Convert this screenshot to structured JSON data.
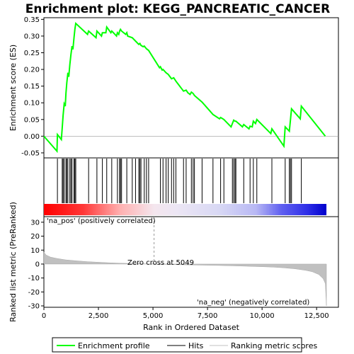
{
  "chart_data": [
    {
      "type": "line",
      "panel": "enrichment-profile",
      "title": "Enrichment plot: KEGG_PANCREATIC_CANCER",
      "ylabel": "Enrichment score (ES)",
      "ylim": [
        -0.065,
        0.355
      ],
      "xlim": [
        0,
        13500
      ],
      "yticks": [
        -0.05,
        0.0,
        0.05,
        0.1,
        0.15,
        0.2,
        0.25,
        0.3,
        0.35
      ],
      "ytick_labels": [
        "-0.05",
        "0.00",
        "0.05",
        "0.10",
        "0.15",
        "0.20",
        "0.25",
        "0.30",
        "0.35"
      ],
      "series": [
        {
          "name": "Enrichment profile",
          "color": "#00ff00",
          "x": [
            0,
            600,
            620,
            800,
            840,
            880,
            930,
            980,
            1010,
            1050,
            1100,
            1140,
            1190,
            1240,
            1290,
            1330,
            1380,
            1420,
            1460,
            2000,
            2050,
            2390,
            2430,
            2640,
            2680,
            2840,
            2880,
            3070,
            3110,
            3330,
            3370,
            3430,
            3470,
            3510,
            3560,
            3750,
            3800,
            3840,
            4050,
            4200,
            4350,
            4400,
            4450,
            4550,
            4600,
            4700,
            4800,
            5300,
            5340,
            5420,
            5460,
            5600,
            5700,
            5850,
            5950,
            6050,
            6400,
            6520,
            6600,
            6700,
            6760,
            6840,
            6900,
            7250,
            7750,
            8050,
            8100,
            8250,
            8580,
            8640,
            8700,
            8760,
            8800,
            9100,
            9160,
            9400,
            9450,
            9550,
            9600,
            9700,
            9760,
            10400,
            10450,
            11000,
            11060,
            11250,
            11300,
            11350,
            11750,
            11800,
            12900
          ],
          "y": [
            0.0,
            -0.045,
            0.005,
            -0.01,
            0.025,
            0.062,
            0.097,
            0.09,
            0.128,
            0.16,
            0.19,
            0.178,
            0.215,
            0.245,
            0.27,
            0.26,
            0.295,
            0.32,
            0.338,
            0.305,
            0.315,
            0.295,
            0.315,
            0.3,
            0.31,
            0.31,
            0.327,
            0.31,
            0.315,
            0.3,
            0.31,
            0.305,
            0.315,
            0.32,
            0.315,
            0.305,
            0.31,
            0.3,
            0.295,
            0.285,
            0.275,
            0.278,
            0.272,
            0.268,
            0.27,
            0.262,
            0.257,
            0.205,
            0.208,
            0.198,
            0.2,
            0.19,
            0.185,
            0.172,
            0.175,
            0.165,
            0.135,
            0.138,
            0.13,
            0.125,
            0.132,
            0.128,
            0.122,
            0.102,
            0.065,
            0.052,
            0.056,
            0.05,
            0.028,
            0.038,
            0.048,
            0.045,
            0.045,
            0.028,
            0.035,
            0.022,
            0.03,
            0.028,
            0.045,
            0.038,
            0.05,
            0.008,
            0.022,
            -0.03,
            0.028,
            0.015,
            0.048,
            0.082,
            0.052,
            0.09,
            0.0
          ]
        }
      ]
    },
    {
      "type": "scatter",
      "panel": "hits",
      "series": [
        {
          "name": "Hits",
          "color": "#000000",
          "x": [
            620,
            840,
            880,
            930,
            1010,
            1050,
            1100,
            1190,
            1240,
            1290,
            1380,
            1420,
            1460,
            2050,
            2430,
            2680,
            2880,
            3110,
            3370,
            3470,
            3510,
            3560,
            3800,
            4050,
            4200,
            4350,
            4400,
            4450,
            4600,
            4700,
            4800,
            5340,
            5460,
            5600,
            5700,
            5850,
            5950,
            6050,
            6400,
            6520,
            6760,
            6840,
            6900,
            7250,
            7750,
            8100,
            8250,
            8640,
            8700,
            8760,
            8800,
            9160,
            9450,
            9600,
            9760,
            10450,
            11060,
            11250,
            11300,
            11350,
            11800
          ]
        }
      ]
    },
    {
      "type": "area",
      "panel": "ranked-list-metric",
      "ylabel": "Ranked list metric (PreRanked)",
      "xlabel": "Rank in Ordered Dataset",
      "ylim": [
        -31,
        34
      ],
      "xlim": [
        0,
        13500
      ],
      "yticks": [
        -30,
        -20,
        -10,
        0,
        10,
        20,
        30
      ],
      "ytick_labels": [
        "-30",
        "-20",
        "-10",
        "0",
        "10",
        "20",
        "30"
      ],
      "xticks": [
        0,
        2500,
        5000,
        7500,
        10000,
        12500
      ],
      "xtick_labels": [
        "0",
        "2,500",
        "5,000",
        "7,500",
        "10,000",
        "12,500"
      ],
      "series": [
        {
          "name": "Ranking metric scores",
          "color": "#c0c0c0",
          "x": [
            0,
            100,
            300,
            600,
            1000,
            1500,
            2000,
            2500,
            3000,
            3500,
            4000,
            4500,
            5049,
            5500,
            6000,
            7000,
            8000,
            9000,
            10000,
            10500,
            11000,
            11500,
            12000,
            12300,
            12600,
            12800,
            12900,
            12950
          ],
          "y": [
            8.5,
            6.5,
            5.0,
            4.0,
            3.0,
            2.3,
            1.7,
            1.3,
            0.9,
            0.6,
            0.4,
            0.2,
            0.0,
            -0.2,
            -0.4,
            -0.7,
            -1.0,
            -1.4,
            -1.9,
            -2.2,
            -2.7,
            -3.4,
            -4.5,
            -5.5,
            -7.5,
            -10.5,
            -14.0,
            -30.0
          ]
        }
      ],
      "annotations": [
        "Zero cross at 5049",
        "'na_pos' (positively correlated)",
        "'na_neg' (negatively correlated)"
      ],
      "zero_cross": 5049
    }
  ],
  "legend": {
    "items": [
      "Enrichment profile",
      "Hits",
      "Ranking metric scores"
    ]
  },
  "colors": {
    "profile": "#00ff00",
    "hits": "#000000",
    "metric": "#c0c0c0",
    "pos_label": "#ff0000",
    "neg_label": "#0000ff"
  }
}
